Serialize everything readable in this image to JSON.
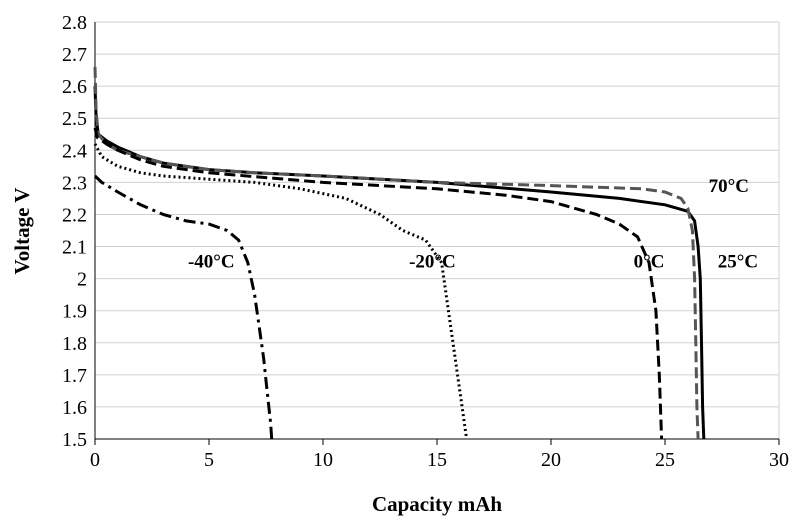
{
  "chart_data": {
    "type": "line",
    "title": "",
    "xlabel": "Capacity mAh",
    "ylabel": "Voltage V",
    "xlim": [
      0,
      30
    ],
    "ylim": [
      1.5,
      2.8
    ],
    "x_ticks": [
      0,
      5,
      10,
      15,
      20,
      25,
      30
    ],
    "x_tick_labels": [
      "0",
      "5",
      "10",
      "15",
      "20",
      "25",
      "30"
    ],
    "y_ticks": [
      1.5,
      1.6,
      1.7,
      1.8,
      1.9,
      2.0,
      2.1,
      2.2,
      2.3,
      2.4,
      2.5,
      2.6,
      2.7,
      2.8
    ],
    "y_tick_labels": [
      "1.5",
      "1.6",
      "1.7",
      "1.8",
      "1.9",
      "2",
      "2.1",
      "2.2",
      "2.3",
      "2.4",
      "2.5",
      "2.6",
      "2.7",
      "2.8"
    ],
    "grid": "horizontal",
    "legend": "none",
    "series": [
      {
        "name": "25°C",
        "style": "solid",
        "color": "#000000",
        "points": [
          [
            0,
            2.6
          ],
          [
            0.05,
            2.5
          ],
          [
            0.15,
            2.45
          ],
          [
            0.5,
            2.43
          ],
          [
            1,
            2.41
          ],
          [
            2,
            2.38
          ],
          [
            3,
            2.36
          ],
          [
            5,
            2.34
          ],
          [
            7,
            2.33
          ],
          [
            10,
            2.32
          ],
          [
            15,
            2.3
          ],
          [
            20,
            2.27
          ],
          [
            23,
            2.25
          ],
          [
            25,
            2.23
          ],
          [
            26,
            2.21
          ],
          [
            26.3,
            2.18
          ],
          [
            26.45,
            2.1
          ],
          [
            26.55,
            2.0
          ],
          [
            26.6,
            1.8
          ],
          [
            26.65,
            1.6
          ],
          [
            26.7,
            1.5
          ]
        ]
      },
      {
        "name": "70°C",
        "style": "dashed",
        "color": "#555555",
        "points": [
          [
            0,
            2.66
          ],
          [
            0.05,
            2.52
          ],
          [
            0.15,
            2.45
          ],
          [
            0.5,
            2.42
          ],
          [
            1,
            2.4
          ],
          [
            2,
            2.38
          ],
          [
            3,
            2.36
          ],
          [
            5,
            2.34
          ],
          [
            7,
            2.33
          ],
          [
            10,
            2.32
          ],
          [
            15,
            2.3
          ],
          [
            20,
            2.29
          ],
          [
            24,
            2.28
          ],
          [
            25,
            2.27
          ],
          [
            25.7,
            2.25
          ],
          [
            26,
            2.22
          ],
          [
            26.2,
            2.15
          ],
          [
            26.3,
            2.0
          ],
          [
            26.35,
            1.8
          ],
          [
            26.4,
            1.6
          ],
          [
            26.45,
            1.5
          ]
        ]
      },
      {
        "name": "0°C",
        "style": "dashed",
        "color": "#000000",
        "points": [
          [
            0,
            2.47
          ],
          [
            0.1,
            2.44
          ],
          [
            0.5,
            2.42
          ],
          [
            1,
            2.4
          ],
          [
            2,
            2.37
          ],
          [
            3,
            2.35
          ],
          [
            5,
            2.33
          ],
          [
            10,
            2.3
          ],
          [
            15,
            2.28
          ],
          [
            18,
            2.26
          ],
          [
            20,
            2.24
          ],
          [
            22,
            2.2
          ],
          [
            23,
            2.17
          ],
          [
            23.8,
            2.13
          ],
          [
            24.3,
            2.05
          ],
          [
            24.6,
            1.9
          ],
          [
            24.75,
            1.7
          ],
          [
            24.85,
            1.5
          ]
        ]
      },
      {
        "name": "-20°C",
        "style": "dotted",
        "color": "#000000",
        "points": [
          [
            0,
            2.42
          ],
          [
            0.3,
            2.38
          ],
          [
            1,
            2.35
          ],
          [
            2,
            2.33
          ],
          [
            3,
            2.32
          ],
          [
            5,
            2.31
          ],
          [
            7,
            2.3
          ],
          [
            9,
            2.28
          ],
          [
            11,
            2.25
          ],
          [
            12.5,
            2.2
          ],
          [
            13.5,
            2.15
          ],
          [
            14.5,
            2.12
          ],
          [
            15.2,
            2.05
          ],
          [
            15.5,
            1.9
          ],
          [
            15.7,
            1.8
          ],
          [
            15.9,
            1.7
          ],
          [
            16.1,
            1.6
          ],
          [
            16.3,
            1.5
          ]
        ]
      },
      {
        "name": "-40°C",
        "style": "dashdot",
        "color": "#000000",
        "points": [
          [
            0,
            2.32
          ],
          [
            0.3,
            2.3
          ],
          [
            1,
            2.27
          ],
          [
            2,
            2.23
          ],
          [
            3,
            2.2
          ],
          [
            4,
            2.18
          ],
          [
            5,
            2.17
          ],
          [
            5.8,
            2.15
          ],
          [
            6.3,
            2.12
          ],
          [
            6.7,
            2.05
          ],
          [
            7,
            1.95
          ],
          [
            7.2,
            1.85
          ],
          [
            7.4,
            1.75
          ],
          [
            7.55,
            1.65
          ],
          [
            7.7,
            1.55
          ],
          [
            7.75,
            1.5
          ]
        ]
      }
    ],
    "annotations": [
      {
        "text": "-40°C",
        "x": 5.1,
        "y": 2.035
      },
      {
        "text": "-20°C",
        "x": 14.8,
        "y": 2.035
      },
      {
        "text": "0°C",
        "x": 24.3,
        "y": 2.035
      },
      {
        "text": "25°C",
        "x": 28.2,
        "y": 2.035
      },
      {
        "text": "70°C",
        "x": 27.8,
        "y": 2.27
      }
    ]
  }
}
